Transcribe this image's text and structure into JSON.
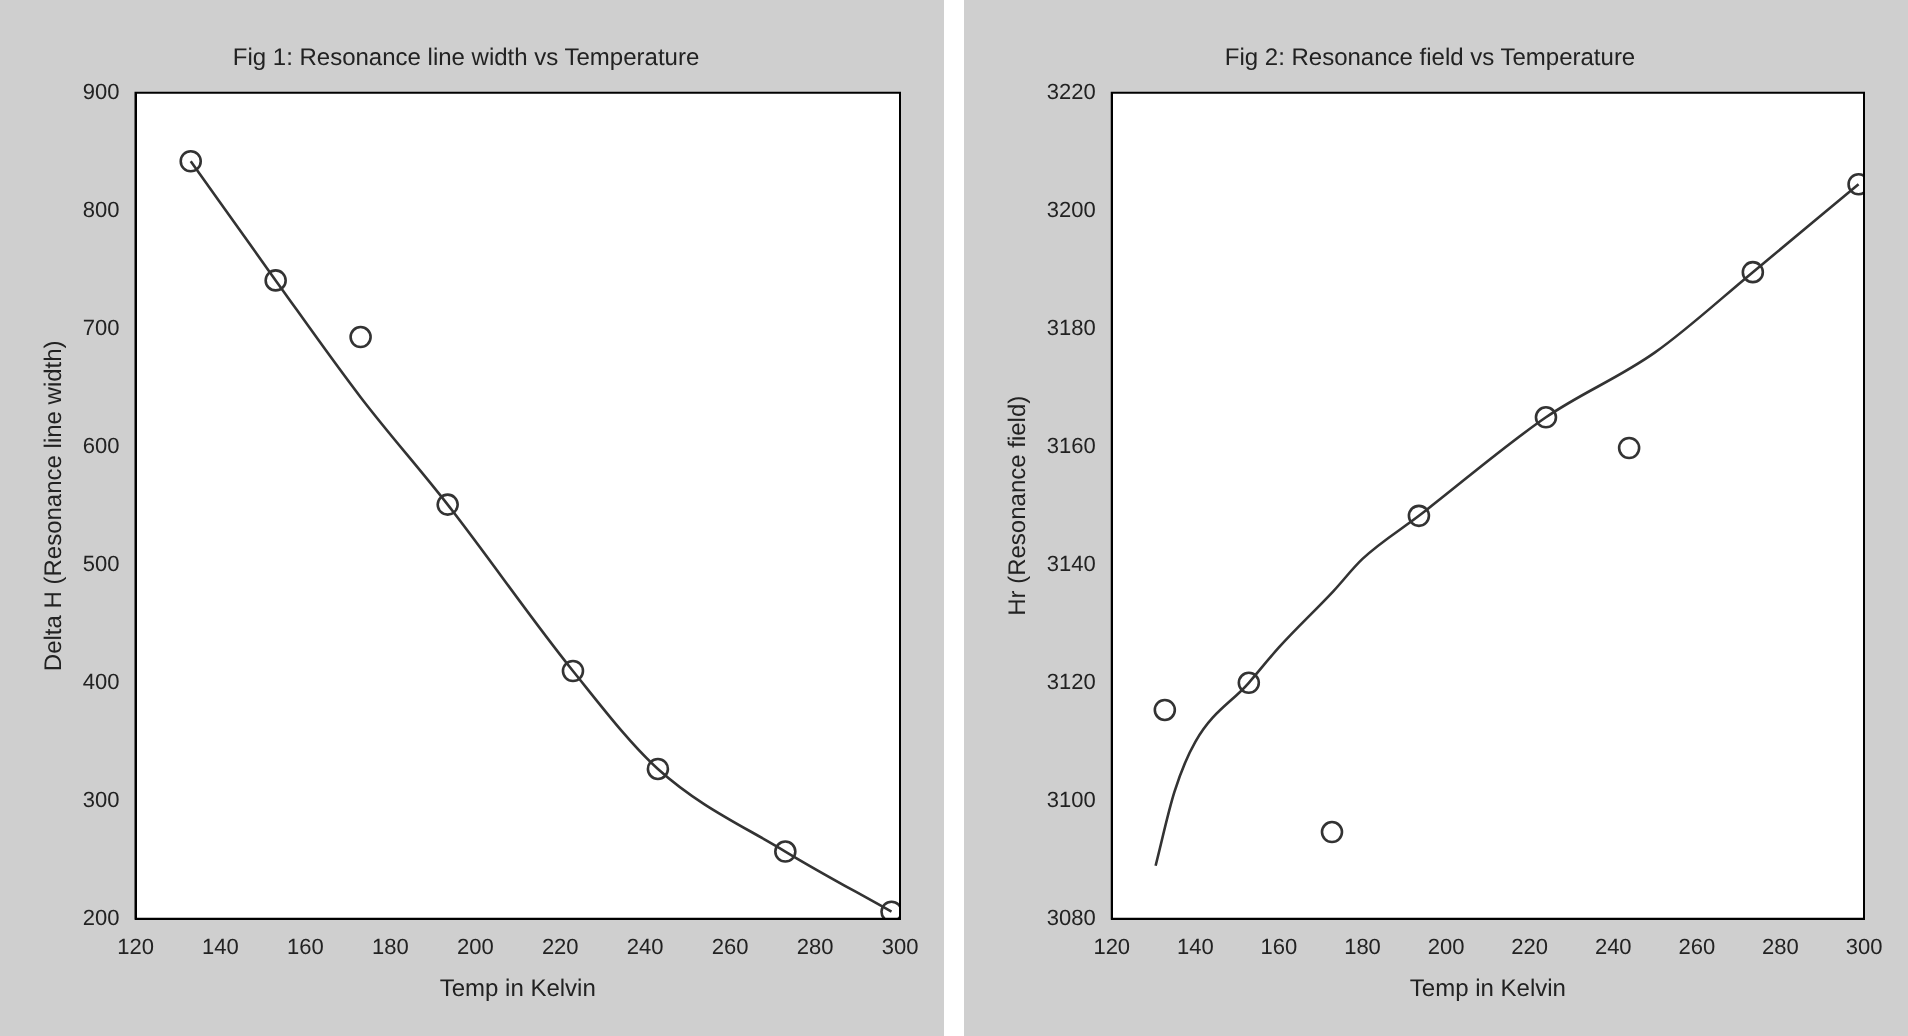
{
  "chart_data": [
    {
      "type": "scatter",
      "title": "Fig 1: Resonance line width vs Temperature",
      "xlabel": "Temp in Kelvin",
      "ylabel": "Delta H (Resonance line width)",
      "xlim": [
        120,
        300
      ],
      "xticks": [
        120,
        140,
        160,
        180,
        200,
        220,
        240,
        260,
        280,
        300
      ],
      "ylim": [
        200,
        900
      ],
      "yticks": [
        200,
        300,
        400,
        500,
        600,
        700,
        800,
        900
      ],
      "grid": false,
      "legend": false,
      "series": [
        {
          "type": "scatter",
          "color": "#333333",
          "marker": "circle",
          "x": [
            133,
            153,
            173,
            193.5,
            223,
            243,
            273,
            298
          ],
          "values": [
            842,
            741,
            693,
            551,
            410,
            327,
            257,
            206
          ]
        },
        {
          "type": "line",
          "color": "#333333",
          "marker": "none",
          "line_style": "solid",
          "x": [
            133,
            153,
            173,
            193.5,
            223,
            243,
            273,
            298
          ],
          "values": [
            842,
            741,
            642,
            551,
            410,
            327,
            257,
            206
          ]
        }
      ]
    },
    {
      "type": "scatter",
      "title": "Fig 2: Resonance field vs Temperature",
      "xlabel": "Temp in Kelvin",
      "ylabel": "Hr (Resonance field)",
      "xlim": [
        120,
        300
      ],
      "xticks": [
        120,
        140,
        160,
        180,
        200,
        220,
        240,
        260,
        280,
        300
      ],
      "ylim": [
        3080,
        3220
      ],
      "yticks": [
        3080,
        3100,
        3120,
        3140,
        3160,
        3180,
        3200,
        3220
      ],
      "grid": false,
      "legend": false,
      "series": [
        {
          "type": "scatter",
          "color": "#333333",
          "marker": "circle",
          "x": [
            132.7,
            152.8,
            172.7,
            193.5,
            223.9,
            243.8,
            273.4,
            298.7
          ],
          "values": [
            3115.4,
            3120,
            3094.7,
            3148.3,
            3165,
            3159.8,
            3189.6,
            3204.5
          ]
        },
        {
          "type": "line",
          "color": "#333333",
          "marker": "none",
          "line_style": "solid",
          "x": [
            130.5,
            135,
            140,
            152.8,
            160,
            173,
            180,
            193.5,
            223.9,
            250,
            273.4,
            298.7
          ],
          "values": [
            3089,
            3101.5,
            3110,
            3120,
            3126,
            3135.5,
            3141,
            3148.3,
            3165,
            3176,
            3189.6,
            3204.5
          ]
        }
      ]
    }
  ]
}
